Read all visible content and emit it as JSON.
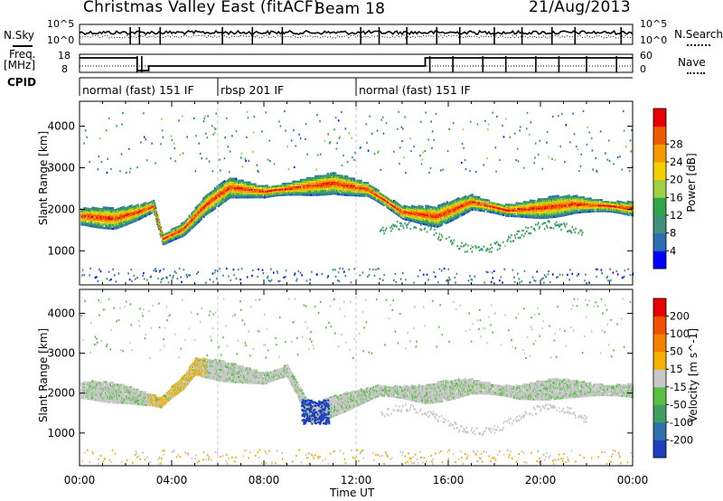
{
  "header": {
    "station": "Christmas Valley East (fitACF)",
    "beam": "Beam 18",
    "date": "21/Aug/2013"
  },
  "top_panels": {
    "nsky_label": "N.Sky",
    "nsearch_label": "N.Search",
    "noise_ticks_left": [
      "10^5",
      "10^0"
    ],
    "noise_ticks_right": [
      "10^5",
      "10^0"
    ],
    "freq_label_line1": "Freq.",
    "freq_label_line2": "[MHz]",
    "freq_ticks": [
      "18",
      "8"
    ],
    "nave_label": "Nave",
    "nave_ticks": [
      "60",
      "0"
    ],
    "cpid_label": "CPID",
    "cpid_segments": [
      {
        "label": "normal (fast) 151 IF",
        "start_h": 0,
        "end_h": 6
      },
      {
        "label": "rbsp 201 IF",
        "start_h": 6,
        "end_h": 12
      },
      {
        "label": "normal (fast) 151 IF",
        "start_h": 12,
        "end_h": 24
      }
    ]
  },
  "chart_data": [
    {
      "type": "heatmap",
      "title": "",
      "quantity": "Power",
      "xlabel": "Time UT",
      "ylabel": "Slant Range [km]",
      "xlim": [
        0,
        24
      ],
      "ylim": [
        180,
        4600
      ],
      "x_tick_labels": [
        "00:00",
        "04:00",
        "08:00",
        "12:00",
        "16:00",
        "20:00",
        "00:00"
      ],
      "y_tick_labels": [
        "1000",
        "2000",
        "3000",
        "4000"
      ],
      "y_tick_values": [
        1000,
        2000,
        3000,
        4000
      ],
      "colorbar": {
        "label": "Power [dB]",
        "tick_labels": [
          "4",
          "8",
          "12",
          "16",
          "20",
          "24",
          "28"
        ],
        "range": [
          0,
          32
        ],
        "colors": [
          "#0000ff",
          "#2a6fb4",
          "#3f8f7a",
          "#2fa64a",
          "#9fd040",
          "#f5d000",
          "#f59a00",
          "#f05a00",
          "#e60000"
        ]
      },
      "series": [
        {
          "x": [
            0.3,
            1.5,
            2.5,
            3.2,
            3.6,
            4.5,
            5.5,
            6.5,
            8.0,
            9.5,
            11.0,
            12.5,
            14.0,
            15.5,
            17.0,
            18.5,
            20.0,
            21.5,
            23.0,
            23.8
          ],
          "y": [
            1850,
            1800,
            1950,
            2100,
            1300,
            1550,
            2150,
            2550,
            2450,
            2550,
            2650,
            2500,
            1950,
            1850,
            2200,
            2000,
            2050,
            2150,
            2100,
            2050
          ]
        }
      ]
    },
    {
      "type": "heatmap",
      "title": "",
      "quantity": "Velocity",
      "xlabel": "Time UT",
      "ylabel": "Slant Range [km]",
      "xlim": [
        0,
        24
      ],
      "ylim": [
        180,
        4600
      ],
      "x_tick_labels": [
        "00:00",
        "04:00",
        "08:00",
        "12:00",
        "16:00",
        "20:00",
        "00:00"
      ],
      "y_tick_labels": [
        "1000",
        "2000",
        "3000",
        "4000"
      ],
      "y_tick_values": [
        1000,
        2000,
        3000,
        4000
      ],
      "colorbar": {
        "label": "Velocity [m s^-1]",
        "tick_labels": [
          "200",
          "100",
          "50",
          "15",
          "-15",
          "-50",
          "-100",
          "-200"
        ],
        "colors": [
          "#1f3fbf",
          "#2f6fb0",
          "#3f9f5f",
          "#58c040",
          "#c8c8c8",
          "#f5b000",
          "#f58000",
          "#f05000",
          "#e60000"
        ]
      },
      "series": [
        {
          "x": [
            0.5,
            2.0,
            3.5,
            4.5,
            5.0,
            8.0,
            9.0,
            10.0,
            13.0,
            15.0,
            17.0,
            19.0,
            21.0,
            23.0
          ],
          "y": [
            2100,
            2000,
            1800,
            2300,
            2700,
            2400,
            2600,
            1500,
            2100,
            2000,
            2200,
            2050,
            2150,
            2100
          ]
        }
      ]
    }
  ]
}
